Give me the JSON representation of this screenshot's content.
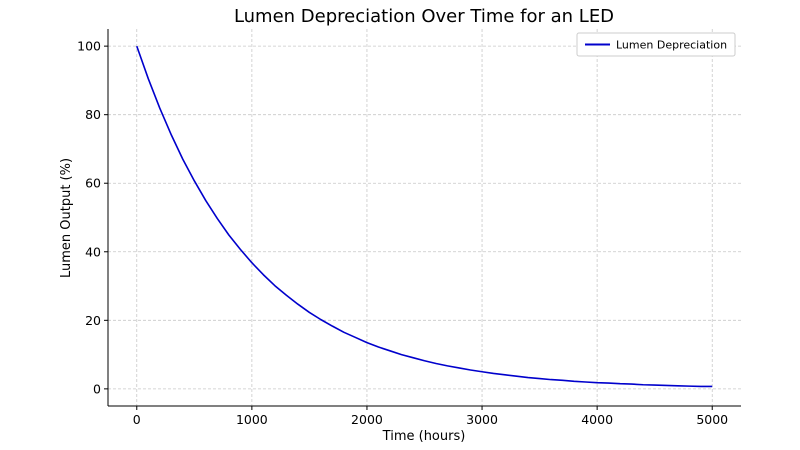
{
  "chart_data": {
    "type": "line",
    "title": "Lumen Depreciation Over Time for an LED",
    "xlabel": "Time (hours)",
    "ylabel": "Lumen Output (%)",
    "xlim": [
      -250,
      5250
    ],
    "ylim": [
      -5,
      105
    ],
    "xticks": [
      0,
      1000,
      2000,
      3000,
      4000,
      5000
    ],
    "xtick_labels": [
      "0",
      "1000",
      "2000",
      "3000",
      "4000",
      "5000"
    ],
    "yticks": [
      0,
      20,
      40,
      60,
      80,
      100
    ],
    "ytick_labels": [
      "0",
      "20",
      "40",
      "60",
      "80",
      "100"
    ],
    "grid": true,
    "grid_style": "dashed",
    "legend_position": "top-right",
    "series": [
      {
        "name": "Lumen Depreciation",
        "color": "#0000cc",
        "x": [
          0,
          100,
          200,
          300,
          400,
          500,
          600,
          700,
          800,
          900,
          1000,
          1100,
          1200,
          1300,
          1400,
          1500,
          1600,
          1700,
          1800,
          1900,
          2000,
          2100,
          2200,
          2300,
          2400,
          2500,
          2600,
          2700,
          2800,
          2900,
          3000,
          3100,
          3200,
          3300,
          3400,
          3500,
          3600,
          3700,
          3800,
          3900,
          4000,
          4100,
          4200,
          4300,
          4400,
          4500,
          4600,
          4700,
          4800,
          4900,
          5000
        ],
        "y": [
          100,
          90.5,
          81.9,
          74.1,
          67.0,
          60.7,
          54.9,
          49.7,
          44.9,
          40.7,
          36.8,
          33.3,
          30.1,
          27.3,
          24.7,
          22.3,
          20.2,
          18.3,
          16.5,
          15.0,
          13.5,
          12.2,
          11.1,
          10.0,
          9.1,
          8.2,
          7.4,
          6.7,
          6.1,
          5.5,
          5.0,
          4.5,
          4.1,
          3.7,
          3.3,
          3.0,
          2.7,
          2.5,
          2.2,
          2.0,
          1.8,
          1.7,
          1.5,
          1.4,
          1.2,
          1.1,
          1.0,
          0.9,
          0.8,
          0.7,
          0.7
        ]
      }
    ]
  }
}
